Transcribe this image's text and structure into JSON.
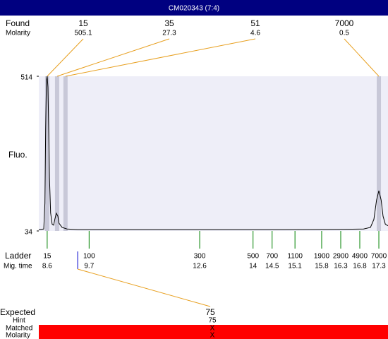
{
  "chart_data": {
    "type": "line",
    "title": "CM020343 (7:4)",
    "y_label": "Fluo.",
    "ylim": [
      34,
      514
    ],
    "yticks": [
      34,
      514
    ],
    "xlim": [
      8.38,
      17.54
    ],
    "x": [
      8.38,
      8.51,
      8.54,
      8.56,
      8.58,
      8.6,
      8.62,
      8.64,
      8.66,
      8.69,
      8.73,
      8.77,
      8.8,
      8.84,
      8.88,
      8.91,
      8.99,
      9.12,
      9.4,
      11.06,
      12.91,
      14.77,
      16.25,
      16.9,
      17.08,
      17.17,
      17.24,
      17.3,
      17.36,
      17.41,
      17.47,
      17.54
    ],
    "series": [
      {
        "color": "#000000",
        "values": [
          38,
          40,
          120,
          350,
          500,
          514,
          480,
          350,
          200,
          90,
          55,
          52,
          70,
          89,
          80,
          58,
          45,
          40,
          38,
          38,
          38,
          38,
          39,
          40,
          45,
          70,
          130,
          159,
          130,
          80,
          55,
          50
        ]
      }
    ],
    "plot_color": "#eeeef8",
    "found": {
      "label": "Found",
      "molarity_label": "Molarity",
      "sizes": [
        15,
        35,
        51,
        7000
      ],
      "molarity": [
        505.1,
        27.3,
        4.6,
        0.5
      ],
      "times": [
        8.6,
        8.86,
        9.08,
        17.3
      ],
      "color": "#e8a020",
      "band_color": "#c8c8d8"
    },
    "ladder": {
      "label": "Ladder",
      "time_label": "Mig. time",
      "sizes": [
        15,
        100,
        300,
        500,
        700,
        1100,
        1900,
        2900,
        4900,
        7000
      ],
      "times": [
        8.6,
        9.7,
        12.6,
        14,
        14.5,
        15.1,
        15.8,
        16.3,
        16.8,
        17.3
      ],
      "color": "#008000"
    },
    "expected": {
      "label": "Expected",
      "size": 75,
      "time": 9.4,
      "hint_label": "Hint",
      "hint": 75,
      "matched_label": "Matched",
      "matched": "X",
      "molarity_label": "Molarity",
      "molarity": "X",
      "marker_color": "#0000cc",
      "bar_color": "#ff0000"
    }
  }
}
